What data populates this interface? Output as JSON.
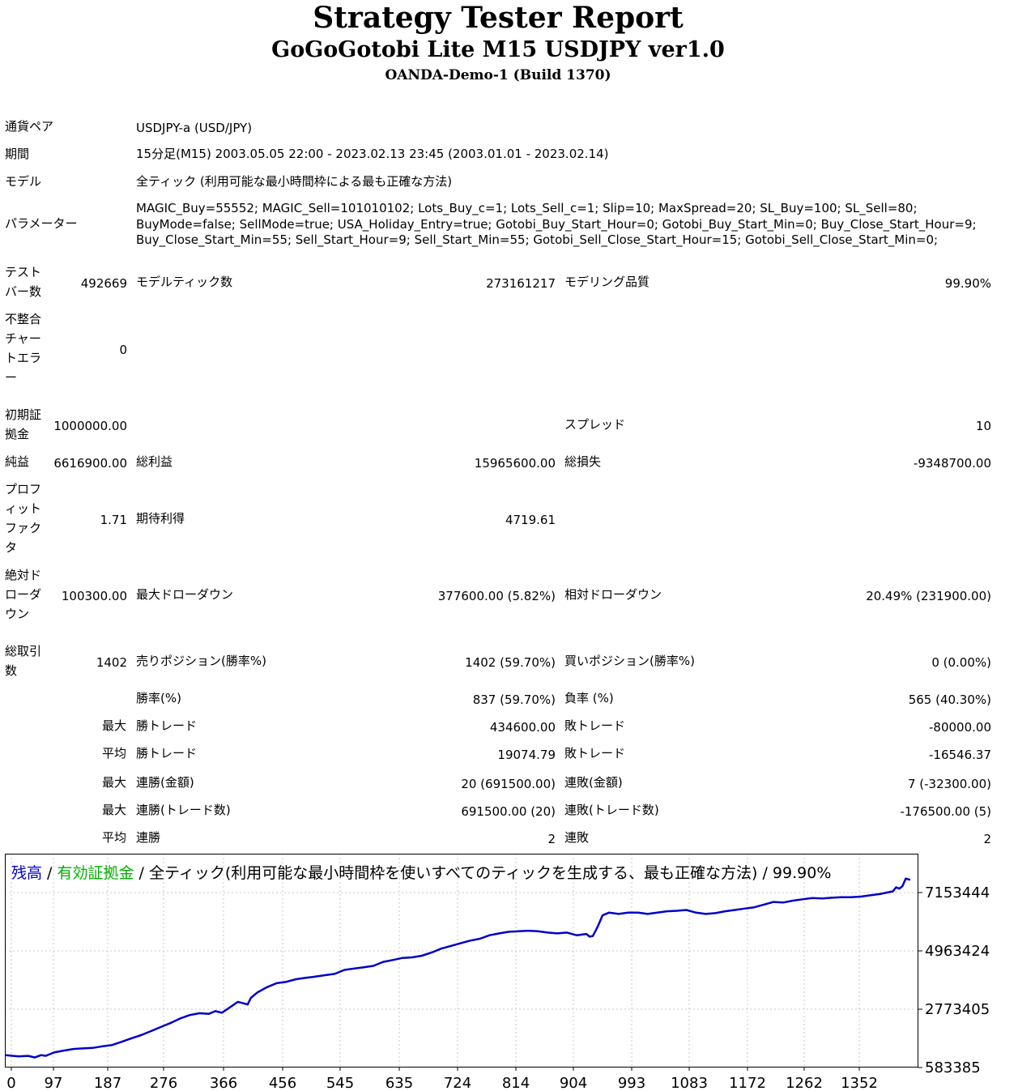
{
  "header": {
    "title": "Strategy Tester Report",
    "subtitle": "GoGoGotobi Lite M15 USDJPY ver1.0",
    "server": "OANDA-Demo-1 (Build 1370)"
  },
  "settings": {
    "symbol_label": "通貨ペア",
    "symbol_value": "USDJPY-a (USD/JPY)",
    "period_label": "期間",
    "period_value": "15分足(M15) 2003.05.05 22:00 - 2023.02.13 23:45 (2003.01.01 - 2023.02.14)",
    "model_label": "モデル",
    "model_value": "全ティック (利用可能な最小時間枠による最も正確な方法)",
    "params_label": "パラメーター",
    "params_value": "MAGIC_Buy=55552; MAGIC_Sell=101010102; Lots_Buy_c=1; Lots_Sell_c=1; Slip=10; MaxSpread=20; SL_Buy=100; SL_Sell=80; BuyMode=false; SellMode=true; USA_Holiday_Entry=true; Gotobi_Buy_Start_Hour=0; Gotobi_Buy_Start_Min=0; Buy_Close_Start_Hour=9; Buy_Close_Start_Min=55; Sell_Start_Hour=9; Sell_Start_Min=55; Gotobi_Sell_Close_Start_Hour=15; Gotobi_Sell_Close_Start_Min=0;"
  },
  "stats": {
    "bars_label": "テストバー数",
    "bars_value": "492669",
    "ticks_label": "モデルティック数",
    "ticks_value": "273161217",
    "quality_label": "モデリング品質",
    "quality_value": "99.90%",
    "mismatch_label": "不整合チャートエラー",
    "mismatch_value": "0",
    "deposit_label": "初期証拠金",
    "deposit_value": "1000000.00",
    "spread_label": "スプレッド",
    "spread_value": "10",
    "net_label": "純益",
    "net_value": "6616900.00",
    "gross_profit_label": "総利益",
    "gross_profit_value": "15965600.00",
    "gross_loss_label": "総損失",
    "gross_loss_value": "-9348700.00",
    "pf_label": "プロフィットファクタ",
    "pf_value": "1.71",
    "payoff_label": "期待利得",
    "payoff_value": "4719.61",
    "abs_dd_label": "絶対ドローダウン",
    "abs_dd_value": "100300.00",
    "max_dd_label": "最大ドローダウン",
    "max_dd_value": "377600.00 (5.82%)",
    "rel_dd_label": "相対ドローダウン",
    "rel_dd_value": "20.49% (231900.00)",
    "trades_label": "総取引数",
    "trades_value": "1402",
    "short_label": "売りポジション(勝率%)",
    "short_value": "1402 (59.70%)",
    "long_label": "買いポジション(勝率%)",
    "long_value": "0 (0.00%)",
    "win_rate_label": "勝率(%)",
    "win_rate_value": "837 (59.70%)",
    "loss_rate_label": "負率 (%)",
    "loss_rate_value": "565 (40.30%)",
    "max_prefix": "最大",
    "avg_prefix": "平均",
    "largest_win_label": "勝トレード",
    "largest_win_value": "434600.00",
    "largest_loss_label": "敗トレード",
    "largest_loss_value": "-80000.00",
    "avg_win_label": "勝トレード",
    "avg_win_value": "19074.79",
    "avg_loss_label": "敗トレード",
    "avg_loss_value": "-16546.37",
    "max_consec_wins_label": "連勝(金額)",
    "max_consec_wins_value": "20 (691500.00)",
    "max_consec_losses_label": "連敗(金額)",
    "max_consec_losses_value": "7 (-32300.00)",
    "max_consec_profit_label": "連勝(トレード数)",
    "max_consec_profit_value": "691500.00 (20)",
    "max_consec_loss_label": "連敗(トレード数)",
    "max_consec_loss_value": "-176500.00 (5)",
    "avg_consec_wins_label": "連勝",
    "avg_consec_wins_value": "2",
    "avg_consec_losses_label": "連敗",
    "avg_consec_losses_value": "2"
  },
  "chart_data": {
    "type": "line",
    "legend": {
      "balance": "残高",
      "sep1": " / ",
      "equity": "有効証拠金",
      "rest": " / 全ティック(利用可能な最小時間枠を使いすべてのティックを生成する、最も正確な方法) / 99.90%"
    },
    "colors": {
      "balance": "#0000c8",
      "equity": "#00b000",
      "grid": "#c8c8c8",
      "frame": "#000000"
    },
    "grid": true,
    "xlim": [
      0,
      1402
    ],
    "ylim": [
      583385,
      7700000
    ],
    "x_ticks": [
      "0",
      "97",
      "187",
      "276",
      "366",
      "456",
      "545",
      "635",
      "724",
      "814",
      "904",
      "993",
      "1083",
      "1172",
      "1262",
      "1352"
    ],
    "y_ticks": [
      "7153444",
      "4963424",
      "2773405",
      "583385"
    ],
    "series": [
      {
        "name": "残高",
        "x": [
          0,
          20,
          35,
          45,
          55,
          62,
          75,
          90,
          105,
          120,
          135,
          150,
          165,
          180,
          195,
          210,
          225,
          240,
          255,
          270,
          285,
          300,
          315,
          325,
          335,
          345,
          360,
          375,
          380,
          390,
          405,
          420,
          435,
          450,
          465,
          480,
          495,
          510,
          525,
          540,
          555,
          570,
          585,
          600,
          615,
          630,
          645,
          660,
          675,
          690,
          705,
          720,
          735,
          750,
          765,
          780,
          795,
          810,
          825,
          840,
          855,
          870,
          885,
          900,
          905,
          910,
          915,
          918,
          925,
          935,
          950,
          965,
          980,
          995,
          1010,
          1025,
          1040,
          1055,
          1070,
          1085,
          1100,
          1115,
          1130,
          1145,
          1160,
          1175,
          1190,
          1205,
          1220,
          1235,
          1250,
          1265,
          1280,
          1295,
          1310,
          1325,
          1340,
          1355,
          1365,
          1375,
          1380,
          1385,
          1390,
          1395,
          1402
        ],
        "values": [
          1050000,
          1000000,
          1020000,
          960000,
          1050000,
          1020000,
          1150000,
          1220000,
          1280000,
          1300000,
          1320000,
          1380000,
          1430000,
          1550000,
          1680000,
          1800000,
          1950000,
          2100000,
          2250000,
          2420000,
          2550000,
          2620000,
          2600000,
          2700000,
          2640000,
          2800000,
          3050000,
          2950000,
          3200000,
          3400000,
          3600000,
          3750000,
          3800000,
          3900000,
          3950000,
          4000000,
          4050000,
          4100000,
          4250000,
          4300000,
          4350000,
          4400000,
          4550000,
          4620000,
          4700000,
          4720000,
          4780000,
          4900000,
          5050000,
          5150000,
          5250000,
          5350000,
          5420000,
          5550000,
          5620000,
          5680000,
          5700000,
          5720000,
          5700000,
          5650000,
          5620000,
          5650000,
          5550000,
          5600000,
          5500000,
          5520000,
          5750000,
          5900000,
          6300000,
          6400000,
          6350000,
          6400000,
          6400000,
          6350000,
          6400000,
          6450000,
          6470000,
          6500000,
          6400000,
          6350000,
          6380000,
          6450000,
          6500000,
          6550000,
          6600000,
          6700000,
          6800000,
          6780000,
          6850000,
          6900000,
          6950000,
          6930000,
          6960000,
          6980000,
          6980000,
          7000000,
          7050000,
          7100000,
          7150000,
          7200000,
          7350000,
          7300000,
          7400000,
          7680000,
          7630000
        ]
      }
    ]
  }
}
